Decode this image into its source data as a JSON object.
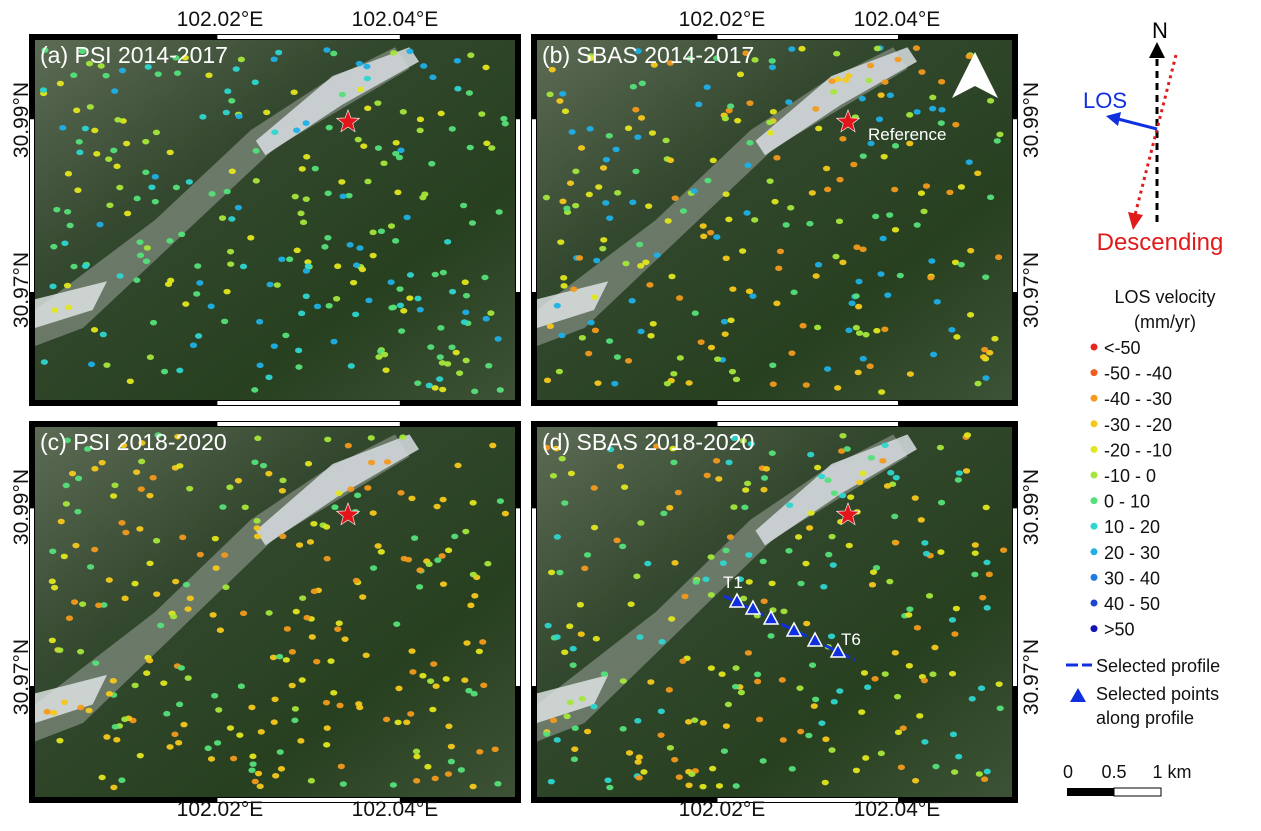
{
  "panels": [
    {
      "label": "(a) PSI 2014-2017"
    },
    {
      "label": "(b) SBAS 2014-2017"
    },
    {
      "label": "(c) PSI 2018-2020"
    },
    {
      "label": "(d) SBAS 2018-2020"
    }
  ],
  "axes": {
    "longitudes": [
      "102.02°E",
      "102.04°E"
    ],
    "latitudes": [
      "30.99°N",
      "30.97°N"
    ]
  },
  "annotations": {
    "reference": "Reference",
    "profile_start": "T1",
    "profile_end": "T6"
  },
  "orientation": {
    "north": "N",
    "los": "LOS",
    "orbit": "Descending"
  },
  "legend": {
    "title": "LOS velocity",
    "unit": "(mm/yr)",
    "items": [
      {
        "label": "<-50",
        "color": "#e8251f"
      },
      {
        "label": "-50 - -40",
        "color": "#f25a1e"
      },
      {
        "label": "-40 - -30",
        "color": "#f39a1c"
      },
      {
        "label": "-30 - -20",
        "color": "#f5c81c"
      },
      {
        "label": "-20 - -10",
        "color": "#e2e61e"
      },
      {
        "label": "-10 - 0",
        "color": "#a5e63c"
      },
      {
        "label": "0 - 10",
        "color": "#55e07a"
      },
      {
        "label": "10 - 20",
        "color": "#2ed6d0"
      },
      {
        "label": "20 - 30",
        "color": "#1eb0e6"
      },
      {
        "label": "30 - 40",
        "color": "#1e7ae0"
      },
      {
        "label": "40 - 50",
        "color": "#1e46d0"
      },
      {
        "label": ">50",
        "color": "#1414b4"
      }
    ],
    "profile": "Selected profile",
    "points": [
      "Selected points",
      "along profile"
    ]
  },
  "scale_bar": [
    "0",
    "0.5",
    "1 km"
  ]
}
